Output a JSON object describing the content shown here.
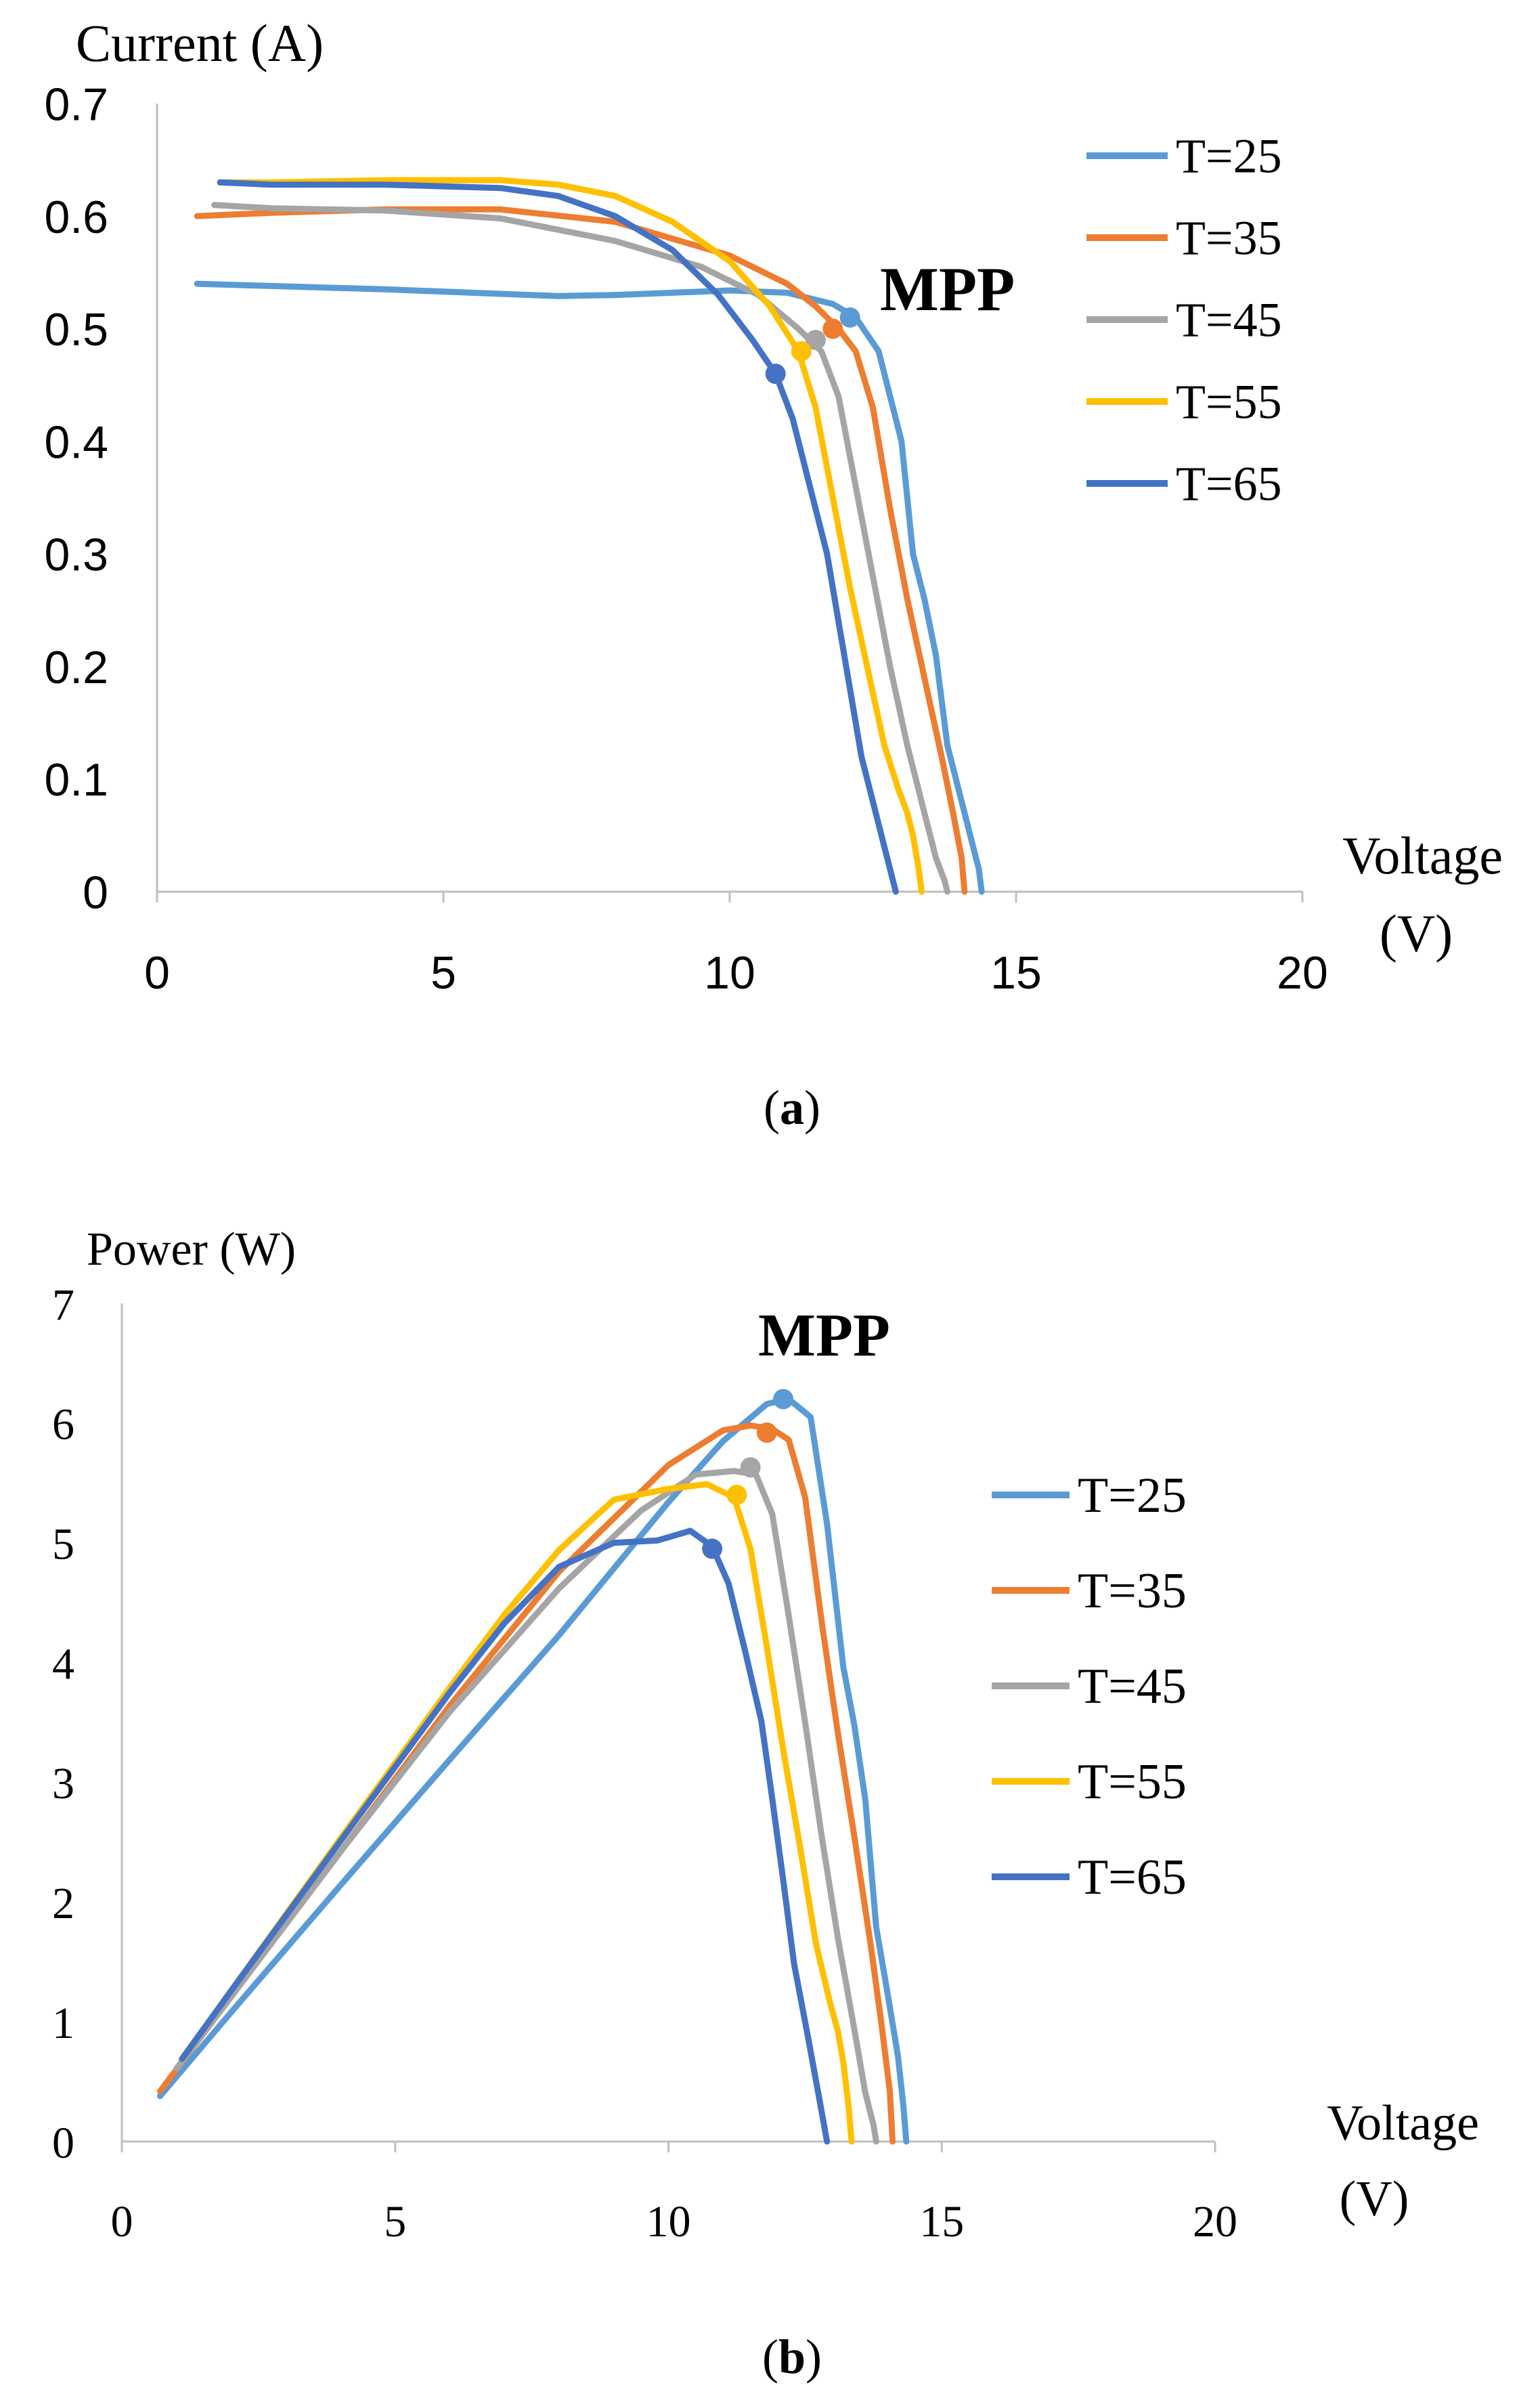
{
  "figure": {
    "panels": [
      {
        "label_open": "(",
        "label_letter": "a",
        "label_close": ")"
      },
      {
        "label_open": "(",
        "label_letter": "b",
        "label_close": ")"
      }
    ]
  },
  "chart_data": [
    {
      "type": "line",
      "title": "",
      "ylabel": "Current (A)",
      "xlabel": [
        "Voltage",
        "(V)"
      ],
      "xlim": [
        0,
        20
      ],
      "ylim": [
        0,
        0.7
      ],
      "xticks": [
        0,
        5,
        10,
        15,
        20
      ],
      "yticks": [
        0,
        0.1,
        0.2,
        0.3,
        0.4,
        0.5,
        0.6,
        0.7
      ],
      "ytick_labels": [
        "0",
        "0.1",
        "0.2",
        "0.3",
        "0.4",
        "0.5",
        "0.6",
        "0.7"
      ],
      "grid": false,
      "legend_position": "top-right",
      "annotation": "MPP",
      "series": [
        {
          "name": "T=25",
          "color": "#5B9BD5",
          "x": [
            0.7,
            2,
            4,
            6,
            7,
            8,
            10,
            11,
            11.8,
            12.2,
            12.6,
            13,
            13.2,
            13.4,
            13.6,
            13.8,
            14.0,
            14.2,
            14.35,
            14.4
          ],
          "y": [
            0.54,
            0.538,
            0.535,
            0.531,
            0.529,
            0.53,
            0.534,
            0.532,
            0.522,
            0.51,
            0.48,
            0.4,
            0.3,
            0.26,
            0.21,
            0.13,
            0.09,
            0.05,
            0.02,
            0.0
          ],
          "mpp": [
            12.1,
            0.51
          ]
        },
        {
          "name": "T=35",
          "color": "#ED7D31",
          "x": [
            0.7,
            2,
            4,
            6,
            8,
            10,
            11,
            11.5,
            11.9,
            12.2,
            12.5,
            12.8,
            13.1,
            13.4,
            13.7,
            13.9,
            14.05,
            14.1
          ],
          "y": [
            0.6,
            0.603,
            0.606,
            0.606,
            0.595,
            0.565,
            0.54,
            0.52,
            0.5,
            0.48,
            0.43,
            0.34,
            0.26,
            0.19,
            0.12,
            0.07,
            0.03,
            0.0
          ],
          "mpp": [
            11.8,
            0.5
          ]
        },
        {
          "name": "T=45",
          "color": "#A5A5A5",
          "x": [
            1,
            2,
            4,
            6,
            8,
            9.5,
            10.5,
            11.2,
            11.6,
            11.9,
            12.2,
            12.5,
            12.8,
            13.1,
            13.4,
            13.6,
            13.75,
            13.8
          ],
          "y": [
            0.61,
            0.607,
            0.605,
            0.598,
            0.578,
            0.555,
            0.53,
            0.5,
            0.48,
            0.44,
            0.36,
            0.28,
            0.2,
            0.13,
            0.07,
            0.03,
            0.01,
            0.0
          ],
          "mpp": [
            11.5,
            0.49
          ]
        },
        {
          "name": "T=55",
          "color": "#FFC000",
          "x": [
            1.1,
            2,
            4,
            6,
            7,
            8,
            9,
            10,
            10.7,
            11.2,
            11.5,
            11.8,
            12.1,
            12.4,
            12.7,
            12.95,
            13.1,
            13.2,
            13.3,
            13.35
          ],
          "y": [
            0.63,
            0.63,
            0.632,
            0.632,
            0.628,
            0.618,
            0.595,
            0.56,
            0.52,
            0.48,
            0.43,
            0.35,
            0.27,
            0.2,
            0.13,
            0.09,
            0.07,
            0.05,
            0.02,
            0.0
          ],
          "mpp": [
            11.25,
            0.48
          ]
        },
        {
          "name": "T=65",
          "color": "#4472C4",
          "x": [
            1.1,
            2,
            4,
            6,
            7,
            8,
            9,
            9.8,
            10.4,
            10.8,
            11.1,
            11.4,
            11.7,
            11.9,
            12.1,
            12.3,
            12.55,
            12.75,
            12.85,
            12.9
          ],
          "y": [
            0.63,
            0.628,
            0.628,
            0.625,
            0.618,
            0.6,
            0.57,
            0.53,
            0.49,
            0.46,
            0.42,
            0.36,
            0.3,
            0.24,
            0.18,
            0.12,
            0.07,
            0.03,
            0.01,
            0.0
          ],
          "mpp": [
            10.8,
            0.46
          ]
        }
      ]
    },
    {
      "type": "line",
      "title": "",
      "ylabel": "Power (W)",
      "xlabel": [
        "Voltage",
        "(V)"
      ],
      "xlim": [
        0,
        20
      ],
      "ylim": [
        0,
        7
      ],
      "xticks": [
        0,
        5,
        10,
        15,
        20
      ],
      "yticks": [
        0,
        1,
        2,
        3,
        4,
        5,
        6,
        7
      ],
      "ytick_labels": [
        "0",
        "1",
        "2",
        "3",
        "4",
        "5",
        "6",
        "7"
      ],
      "grid": false,
      "legend_position": "right",
      "annotation": "MPP",
      "series": [
        {
          "name": "T=25",
          "color": "#5B9BD5",
          "x": [
            0.7,
            2,
            4,
            6,
            8,
            10,
            11,
            11.8,
            12.2,
            12.6,
            12.9,
            13.2,
            13.4,
            13.6,
            13.8,
            14.0,
            14.2,
            14.3,
            14.35
          ],
          "y": [
            0.38,
            1.08,
            2.14,
            3.19,
            4.23,
            5.34,
            5.85,
            6.16,
            6.2,
            6.05,
            5.16,
            3.96,
            3.48,
            2.86,
            1.79,
            1.26,
            0.71,
            0.29,
            0.0
          ],
          "mpp": [
            12.1,
            6.2
          ]
        },
        {
          "name": "T=35",
          "color": "#ED7D31",
          "x": [
            0.7,
            2,
            4,
            6,
            8,
            10,
            11,
            11.5,
            11.9,
            12.2,
            12.5,
            12.8,
            13.1,
            13.4,
            13.7,
            13.9,
            14.05,
            14.1
          ],
          "y": [
            0.42,
            1.21,
            2.42,
            3.64,
            4.76,
            5.65,
            5.94,
            5.98,
            5.95,
            5.86,
            5.38,
            4.35,
            3.41,
            2.55,
            1.64,
            0.97,
            0.42,
            0.0
          ],
          "mpp": [
            11.8,
            5.92
          ]
        },
        {
          "name": "T=45",
          "color": "#A5A5A5",
          "x": [
            1,
            2,
            4,
            6,
            8,
            9.5,
            10.5,
            11.2,
            11.6,
            11.9,
            12.2,
            12.5,
            12.8,
            13.1,
            13.4,
            13.6,
            13.75,
            13.8
          ],
          "y": [
            0.61,
            1.21,
            2.42,
            3.59,
            4.62,
            5.27,
            5.57,
            5.6,
            5.57,
            5.24,
            4.39,
            3.5,
            2.56,
            1.7,
            0.94,
            0.41,
            0.14,
            0.0
          ],
          "mpp": [
            11.5,
            5.63
          ]
        },
        {
          "name": "T=55",
          "color": "#FFC000",
          "x": [
            1.1,
            2,
            4,
            6,
            7,
            8,
            9,
            10,
            10.7,
            11.2,
            11.5,
            11.8,
            12.1,
            12.4,
            12.7,
            12.95,
            13.1,
            13.2,
            13.3,
            13.35
          ],
          "y": [
            0.69,
            1.26,
            2.53,
            3.79,
            4.4,
            4.94,
            5.36,
            5.45,
            5.49,
            5.38,
            4.95,
            4.13,
            3.27,
            2.48,
            1.65,
            1.17,
            0.92,
            0.66,
            0.27,
            0.0
          ],
          "mpp": [
            11.25,
            5.4
          ]
        },
        {
          "name": "T=65",
          "color": "#4472C4",
          "x": [
            1.1,
            2,
            4,
            6,
            7,
            8,
            9,
            9.8,
            10.4,
            10.8,
            11.1,
            11.4,
            11.7,
            11.9,
            12.1,
            12.3,
            12.55,
            12.75,
            12.85,
            12.9
          ],
          "y": [
            0.69,
            1.26,
            2.51,
            3.75,
            4.33,
            4.8,
            5.0,
            5.02,
            5.1,
            4.97,
            4.66,
            4.1,
            3.51,
            2.86,
            2.18,
            1.48,
            0.88,
            0.38,
            0.13,
            0.0
          ],
          "mpp": [
            10.8,
            4.95
          ]
        }
      ]
    }
  ]
}
